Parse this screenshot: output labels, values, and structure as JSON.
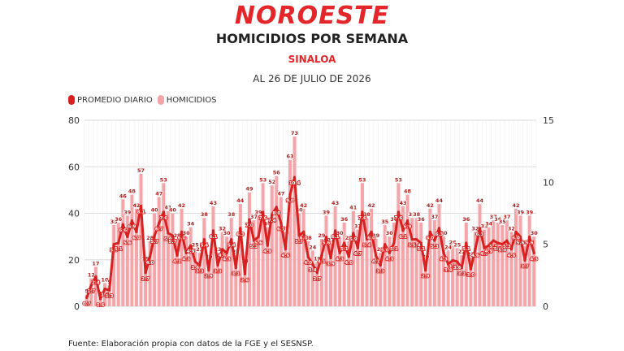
{
  "header": {
    "logo_text": "NOROESTE",
    "title": "HOMICIDIOS POR SEMANA",
    "region": "SINALOA",
    "date": "AL 26 DE JULIO DE 2026"
  },
  "legend": {
    "line_label": "PROMEDIO DIARIO",
    "bar_label": "HOMICIDIOS"
  },
  "source": "Fuente: Elaboración propia con datos de la FGE y el SESNSP.",
  "colors": {
    "bar": "#f4a5a9",
    "line": "#d7201f",
    "grid": "#d9d9d9",
    "brand": "#e4262a"
  },
  "chart_data": {
    "type": "bar",
    "title": "HOMICIDIOS POR SEMANA",
    "ylim_left": [
      0,
      80
    ],
    "ylim_right": [
      0,
      15
    ],
    "yticks_left": [
      "0",
      "20",
      "40",
      "60",
      "80"
    ],
    "yticks_right": [
      "0",
      "5",
      "10",
      "15"
    ],
    "grid": true,
    "legend_position": "top-left",
    "series": [
      {
        "name": "HOMICIDIOS",
        "type": "bar",
        "axis": "left",
        "values": [
          5,
          12,
          17,
          4,
          10,
          9,
          35,
          36,
          46,
          39,
          48,
          42,
          57,
          19,
          28,
          40,
          47,
          53,
          41,
          40,
          29,
          42,
          30,
          34,
          25,
          23,
          38,
          20,
          43,
          23,
          32,
          30,
          38,
          22,
          44,
          18,
          49,
          37,
          39,
          53,
          34,
          52,
          56,
          47,
          32,
          63,
          73,
          40,
          42,
          28,
          24,
          19,
          29,
          39,
          27,
          43,
          30,
          36,
          28,
          41,
          33,
          53,
          38,
          42,
          29,
          23,
          35,
          30,
          36,
          53,
          43,
          48,
          38,
          38,
          36,
          20,
          42,
          37,
          44,
          30,
          24,
          26,
          25,
          22,
          36,
          21,
          32,
          44,
          33,
          34,
          37,
          36,
          35,
          37,
          32,
          42,
          39,
          26,
          39,
          30
        ],
        "labels": [
          "5",
          "12",
          "17",
          "4",
          "10",
          "9",
          "35",
          "36",
          "46",
          "39",
          "48",
          "42",
          "57",
          "19",
          "28",
          "40",
          "47",
          "53",
          "41",
          "40",
          "29",
          "42",
          "30",
          "34",
          "25",
          "23",
          "38",
          "20",
          "43",
          "23",
          "32",
          "30",
          "38",
          "22",
          "44",
          "18",
          "49",
          "37",
          "39",
          "53",
          "34",
          "52",
          "56",
          "47",
          "32",
          "63",
          "73",
          "40",
          "42",
          "28",
          "24",
          "19",
          "29",
          "39",
          "27",
          "43",
          "30",
          "36",
          "28",
          "41",
          "33",
          "53",
          "38",
          "42",
          "29",
          "23",
          "35",
          "30",
          "36",
          "53",
          "43",
          "48",
          "38",
          "38",
          "36",
          "20",
          "42",
          "37",
          "44",
          "30",
          "24",
          "26",
          "25",
          "22",
          "36",
          "21",
          "32",
          "44",
          "33",
          "34",
          "37",
          "36",
          "35",
          "37",
          "32",
          "42",
          "39",
          "26",
          "39",
          "30"
        ]
      },
      {
        "name": "PROMEDIO DIARIO",
        "type": "line",
        "axis": "right",
        "values": [
          0.7,
          1.7,
          2.4,
          0.6,
          1.4,
          1.3,
          5.0,
          5.1,
          6.6,
          5.6,
          6.9,
          6.0,
          8.1,
          2.7,
          4.0,
          5.7,
          6.7,
          7.6,
          5.9,
          5.7,
          4.1,
          6.0,
          4.3,
          4.9,
          3.6,
          3.3,
          5.4,
          2.9,
          6.1,
          3.3,
          4.6,
          4.3,
          5.4,
          3.1,
          6.3,
          2.6,
          7.0,
          5.3,
          5.6,
          7.6,
          4.9,
          7.4,
          8.0,
          6.7,
          4.6,
          9.0,
          10.4,
          5.7,
          6.0,
          4.0,
          3.4,
          2.7,
          4.1,
          5.6,
          3.9,
          6.1,
          4.3,
          5.1,
          4.0,
          5.9,
          4.7,
          7.6,
          5.4,
          6.0,
          4.1,
          3.3,
          5.0,
          4.3,
          5.1,
          7.6,
          6.1,
          6.9,
          5.4,
          5.4,
          5.1,
          2.9,
          6.0,
          5.3,
          6.3,
          4.3,
          3.4,
          3.7,
          3.6,
          3.1,
          5.1,
          3.0,
          4.6,
          6.3,
          4.7,
          4.9,
          5.3,
          5.1,
          5.0,
          5.3,
          4.6,
          6.0,
          5.6,
          3.7,
          5.6,
          4.3
        ],
        "labels": [
          "0.7",
          "1.7",
          "2.4",
          "0.6",
          "1.4",
          "1.3",
          "5.0",
          "5.1",
          "6.6",
          "5.6",
          "6.9",
          "6.0",
          "8.1",
          "2.7",
          "4.0",
          "5.7",
          "6.7",
          "7.6",
          "5.9",
          "5.7",
          "4.1",
          "6.0",
          "4.3",
          "4.9",
          "3.6",
          "3.3",
          "5.4",
          "2.9",
          "6.1",
          "3.3",
          "4.6",
          "4.3",
          "5.4",
          "3.1",
          "6.3",
          "2.6",
          "7.0",
          "5.3",
          "5.6",
          "7.6",
          "4.9",
          "7.4",
          "8.0",
          "6.7",
          "4.6",
          "9.0",
          "10.4",
          "5.7",
          "6.0",
          "4.0",
          "3.4",
          "2.7",
          "4.1",
          "5.6",
          "3.9",
          "6.1",
          "4.3",
          "5.1",
          "4.0",
          "5.9",
          "4.7",
          "7.6",
          "5.4",
          "6.0",
          "4.1",
          "3.3",
          "5.0",
          "4.3",
          "5.1",
          "7.6",
          "6.1",
          "6.9",
          "5.4",
          "5.4",
          "5.1",
          "2.9",
          "6.0",
          "5.3",
          "6.3",
          "4.3",
          "3.4",
          "3.7",
          "3.6",
          "3.1",
          "5.1",
          "3.0",
          "4.6",
          "6.3",
          "4.7",
          "4.9",
          "5.3",
          "5.1",
          "5.0",
          "5.3",
          "4.6",
          "6.0",
          "5.6",
          "3.7",
          "5.6",
          "4.3"
        ]
      }
    ]
  }
}
